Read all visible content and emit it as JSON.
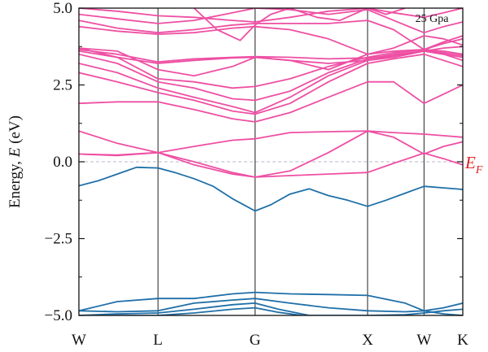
{
  "chart_data": {
    "type": "line",
    "ylabel_prefix": "Energy, ",
    "ylabel_var": "E",
    "ylabel_unit": " (eV)",
    "annotation": "25 Gpa",
    "fermi_label_main": "E",
    "fermi_label_sub": "F",
    "fermi_level": 0.0,
    "ylim": [
      -5.0,
      5.0
    ],
    "yticks": [
      {
        "value": 5.0,
        "label": "5.0"
      },
      {
        "value": 2.5,
        "label": "2.5"
      },
      {
        "value": 0.0,
        "label": "0.0"
      },
      {
        "value": -2.5,
        "label": "−2.5"
      },
      {
        "value": -5.0,
        "label": "−5.0"
      }
    ],
    "xlim": [
      0,
      100
    ],
    "kpoints": [
      {
        "label": "W",
        "x": 0
      },
      {
        "label": "L",
        "x": 20.6
      },
      {
        "label": "G",
        "x": 45.9
      },
      {
        "label": "X",
        "x": 75.2
      },
      {
        "label": "W",
        "x": 89.9
      },
      {
        "label": "K",
        "x": 100
      }
    ],
    "colors": {
      "conduction": "#ee4fa3",
      "valence": "#1f6fa8",
      "fermi_line": "#b8b8c8",
      "fermi_label": "#e02020"
    },
    "series": [
      {
        "band": "valence",
        "x": [
          0,
          5,
          10,
          15,
          20.6,
          25,
          30,
          35,
          40,
          45.9,
          50,
          55,
          60,
          65,
          70,
          75.2,
          80,
          85,
          89.9,
          95,
          100
        ],
        "values": [
          -0.78,
          -0.62,
          -0.4,
          -0.18,
          -0.2,
          -0.35,
          -0.55,
          -0.8,
          -1.2,
          -1.6,
          -1.4,
          -1.05,
          -0.88,
          -1.1,
          -1.25,
          -1.45,
          -1.25,
          -1.02,
          -0.8,
          -0.85,
          -0.9
        ]
      },
      {
        "band": "valence",
        "x": [
          0,
          10,
          20.6,
          30,
          40,
          45.9,
          55,
          65,
          75.2,
          85,
          89.9,
          95,
          100
        ],
        "values": [
          -4.85,
          -4.55,
          -4.45,
          -4.45,
          -4.3,
          -4.25,
          -4.3,
          -4.32,
          -4.35,
          -4.6,
          -4.85,
          -4.75,
          -4.6
        ]
      },
      {
        "band": "valence",
        "x": [
          0,
          10,
          20.6,
          30,
          40,
          45.9,
          55,
          65,
          75.2,
          85,
          89.9,
          95,
          100
        ],
        "values": [
          -4.85,
          -4.88,
          -4.85,
          -4.6,
          -4.5,
          -4.45,
          -4.6,
          -4.75,
          -4.85,
          -4.88,
          -4.85,
          -4.95,
          -5.0
        ]
      },
      {
        "band": "valence",
        "x": [
          0,
          10,
          20.6,
          30,
          40,
          45.9,
          52,
          60,
          68,
          75.2,
          85,
          89.9,
          95,
          100
        ],
        "values": [
          -5.0,
          -4.95,
          -4.92,
          -4.8,
          -4.65,
          -4.6,
          -4.8,
          -5.0,
          -5.0,
          -5.0,
          -4.98,
          -4.92,
          -4.85,
          -4.8
        ]
      },
      {
        "band": "valence",
        "x": [
          0,
          20.6,
          30,
          40,
          45.9,
          52,
          58
        ],
        "values": [
          -5.0,
          -5.0,
          -4.92,
          -4.8,
          -4.75,
          -4.9,
          -5.0
        ]
      },
      {
        "band": "conduction",
        "x": [
          0,
          10,
          20.6,
          30,
          40,
          45.9,
          55,
          65,
          75.2,
          82,
          89.9,
          95,
          100
        ],
        "values": [
          0.25,
          0.22,
          0.3,
          0.0,
          -0.35,
          -0.5,
          -0.45,
          -0.4,
          -0.35,
          -0.05,
          0.28,
          0.1,
          -0.1
        ]
      },
      {
        "band": "conduction",
        "x": [
          0,
          10,
          20.6,
          30,
          40,
          45.9,
          55,
          65,
          75.2,
          82,
          89.9,
          95,
          100
        ],
        "values": [
          0.25,
          0.2,
          0.3,
          -0.1,
          -0.4,
          -0.5,
          -0.3,
          0.3,
          1.0,
          0.8,
          0.25,
          0.5,
          0.65
        ]
      },
      {
        "band": "conduction",
        "x": [
          0,
          10,
          20.6,
          30,
          40,
          45.9,
          55,
          65,
          75.2,
          82,
          89.9,
          95,
          100
        ],
        "values": [
          1.0,
          0.6,
          0.3,
          0.5,
          0.7,
          0.75,
          0.95,
          0.98,
          1.0,
          0.95,
          0.9,
          0.85,
          0.8
        ]
      },
      {
        "band": "conduction",
        "x": [
          0,
          10,
          20.6,
          30,
          40,
          45.9,
          55,
          65,
          75.2,
          82,
          89.9,
          95,
          100
        ],
        "values": [
          1.9,
          1.95,
          1.95,
          1.7,
          1.4,
          1.3,
          1.6,
          2.1,
          2.6,
          2.6,
          1.9,
          2.2,
          2.5
        ]
      },
      {
        "band": "conduction",
        "x": [
          0,
          10,
          20.6,
          30,
          40,
          45.9,
          55,
          65,
          75.2,
          82,
          89.9,
          95,
          100
        ],
        "values": [
          2.9,
          2.6,
          2.25,
          2.0,
          1.65,
          1.55,
          1.9,
          2.6,
          3.2,
          3.35,
          3.5,
          3.3,
          3.1
        ]
      },
      {
        "band": "conduction",
        "x": [
          0,
          10,
          20.6,
          30,
          40,
          45.9,
          55,
          65,
          75.2,
          82,
          89.9,
          95,
          100
        ],
        "values": [
          3.2,
          2.9,
          2.4,
          2.1,
          1.8,
          1.6,
          2.1,
          2.8,
          3.3,
          3.45,
          3.6,
          3.5,
          3.4
        ]
      },
      {
        "band": "conduction",
        "x": [
          0,
          10,
          20.6,
          30,
          40,
          45.9,
          55,
          65,
          75.2,
          82,
          89.9,
          95,
          100
        ],
        "values": [
          3.5,
          3.2,
          2.6,
          2.4,
          2.05,
          2.0,
          2.3,
          2.9,
          3.35,
          3.5,
          3.6,
          3.7,
          3.75
        ]
      },
      {
        "band": "conduction",
        "x": [
          0,
          10,
          20.6,
          30,
          40,
          45.9,
          55,
          65,
          75.2,
          82,
          89.9,
          95,
          100
        ],
        "values": [
          3.7,
          3.4,
          2.7,
          2.6,
          2.4,
          2.45,
          2.7,
          3.1,
          3.4,
          3.55,
          3.65,
          3.85,
          4.0
        ]
      },
      {
        "band": "conduction",
        "x": [
          0,
          10,
          20.6,
          30,
          40,
          45.9,
          55,
          65,
          75.2,
          82,
          89.9,
          95,
          100
        ],
        "values": [
          3.7,
          3.6,
          3.0,
          2.8,
          3.1,
          3.4,
          3.3,
          3.0,
          3.5,
          3.6,
          3.65,
          3.6,
          3.5
        ]
      },
      {
        "band": "conduction",
        "x": [
          0,
          10,
          20.6,
          30,
          40,
          45.9,
          55,
          65,
          75.2,
          82,
          89.9,
          95,
          100
        ],
        "values": [
          3.6,
          3.4,
          3.2,
          3.3,
          3.38,
          3.4,
          3.3,
          3.2,
          3.3,
          3.4,
          3.6,
          3.5,
          3.3
        ]
      },
      {
        "band": "conduction",
        "x": [
          0,
          10,
          20.6,
          30,
          40,
          45.9,
          55,
          65,
          75.2,
          82,
          89.9,
          95,
          100
        ],
        "values": [
          3.65,
          3.5,
          3.25,
          3.35,
          3.4,
          3.42,
          3.4,
          3.35,
          3.38,
          3.45,
          3.62,
          3.55,
          3.45
        ]
      },
      {
        "band": "conduction",
        "x": [
          0,
          10,
          20.6,
          30,
          40,
          45.9,
          55,
          65,
          75.2,
          82,
          89.9,
          95,
          100
        ],
        "values": [
          4.4,
          4.25,
          4.15,
          4.2,
          4.35,
          4.4,
          4.3,
          4.0,
          3.5,
          3.7,
          4.1,
          4.0,
          3.8
        ]
      },
      {
        "band": "conduction",
        "x": [
          0,
          10,
          20.6,
          30,
          40,
          45.9,
          55,
          65,
          75.2,
          82,
          89.9,
          95,
          100
        ],
        "values": [
          4.6,
          4.35,
          4.2,
          4.3,
          4.45,
          4.5,
          4.5,
          4.5,
          4.6,
          4.3,
          3.65,
          3.9,
          4.1
        ]
      },
      {
        "band": "conduction",
        "x": [
          0,
          10,
          20.6,
          30,
          40,
          45.9,
          55,
          65,
          75.2,
          82,
          89.9,
          95,
          100
        ],
        "values": [
          4.8,
          4.65,
          4.5,
          4.6,
          4.85,
          5.0,
          4.95,
          4.8,
          4.95,
          4.6,
          4.2,
          4.4,
          4.55
        ]
      },
      {
        "band": "conduction",
        "x": [
          0,
          10,
          20.6,
          30,
          40,
          45.9,
          55,
          65,
          75.2,
          82,
          89.9,
          95,
          100
        ],
        "values": [
          5.0,
          4.9,
          4.75,
          4.7,
          4.6,
          4.55,
          4.7,
          4.9,
          5.0,
          4.85,
          4.7,
          4.85,
          5.0
        ]
      },
      {
        "band": "conduction",
        "x": [
          30,
          36,
          42,
          45.9,
          50,
          55
        ],
        "values": [
          5.0,
          4.3,
          3.95,
          4.45,
          4.8,
          5.0
        ]
      },
      {
        "band": "conduction",
        "x": [
          55,
          62,
          68,
          75.2,
          80,
          85
        ],
        "values": [
          5.0,
          4.7,
          4.6,
          5.0,
          4.8,
          5.0
        ]
      }
    ]
  }
}
